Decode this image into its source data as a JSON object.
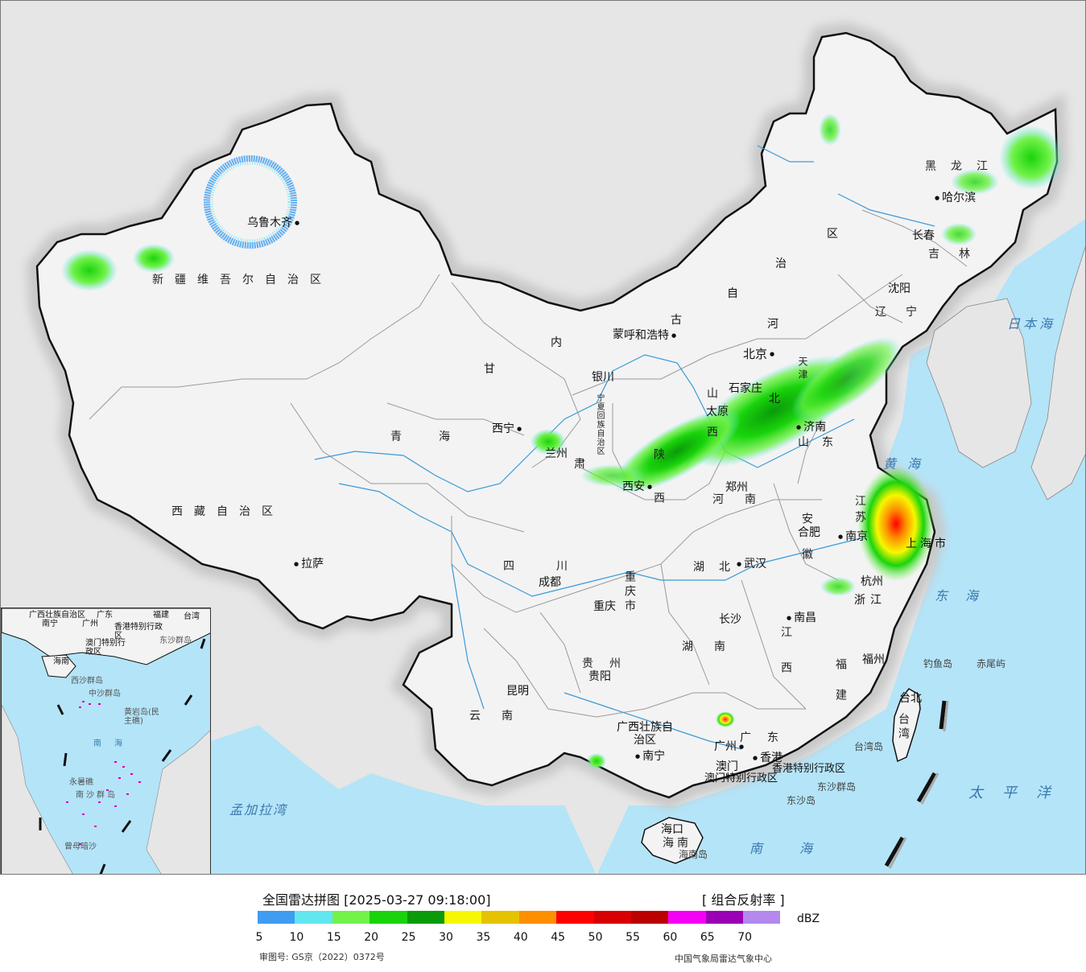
{
  "map": {
    "colors": {
      "land": "#f3f3f3",
      "outside": "#e6e6e6",
      "sea": "#b4e4f8",
      "border": "#111111",
      "province_border": "#9a9a9a",
      "river": "#3a9ad9"
    },
    "province_labels": {
      "xinjiang": "新疆维吾尔自治区",
      "xizang": "西藏自治区",
      "qinghai": "青海",
      "gansu": "甘",
      "gansu2": "肃",
      "neimenggu_a": "内",
      "neimenggu_b": "蒙",
      "neimenggu_c": "古",
      "neimenggu_d": "自",
      "neimenggu_e": "治",
      "neimenggu_f": "区",
      "heilongjiang": "黑龙江",
      "jilin": "吉林",
      "liaoning": "辽宁",
      "hebei_a": "河",
      "hebei_b": "北",
      "tianjin": "天津",
      "shanxi": "山西",
      "shaanxi": "陕西",
      "ningxia": "宁夏回族自治区",
      "shandong": "山东",
      "henan": "河南",
      "jiangsu": "江苏",
      "anhui": "安徽",
      "shanghai": "上海市",
      "zhejiang": "浙江",
      "hubei": "湖北",
      "hunan": "湖南",
      "jiangxi": "江西",
      "fujian": "福建",
      "guangdong": "广东",
      "guangxi": "广西壮族自治区",
      "guizhou": "贵州",
      "yunnan": "云南",
      "sichuan": "四川",
      "chongqing": "重庆市",
      "hainan": "海南",
      "taiwan": "台湾",
      "xianggang": "香港特别行政区",
      "aomen": "澳门特别行政区"
    },
    "cities": {
      "urumqi": "乌鲁木齐",
      "lasa": "拉萨",
      "xining": "西宁",
      "lanzhou": "兰州",
      "yinchuan": "银川",
      "huhehaote": "呼和浩特",
      "beijing": "北京",
      "shijiazhuang": "石家庄",
      "taiyuan": "太原",
      "jinan": "济南",
      "xian": "西安",
      "zhengzhou": "郑州",
      "hefei": "合肥",
      "nanjing": "南京",
      "hangzhou": "杭州",
      "wuhan": "武汉",
      "changsha": "长沙",
      "nanchang": "南昌",
      "fuzhou": "福州",
      "chengdu": "成都",
      "chongqing": "重庆",
      "guiyang": "贵阳",
      "kunming": "昆明",
      "nanning": "南宁",
      "guangzhou": "广州",
      "aomen": "澳门",
      "xianggang": "香港",
      "haikou": "海口",
      "taibei": "台北",
      "shenyang": "沈阳",
      "changchun": "长春",
      "haerbin": "哈尔滨"
    },
    "seas": {
      "riben": "日本海",
      "huang": "黄海",
      "dong": "东海",
      "nan": "南海",
      "taiping": "太平洋",
      "mengjiala": "孟加拉湾"
    },
    "islands": {
      "diaoyu": "钓鱼岛",
      "chiwei": "赤尾屿",
      "taiwan_isle": "台湾岛",
      "hainan_isle": "海南岛",
      "dongsha_qundao": "东沙群岛",
      "dongsha_dao": "东沙岛"
    }
  },
  "inset": {
    "labels": {
      "guangxi": "广西壮族自治区",
      "guangdong": "广东",
      "fujian": "福建",
      "taiwan": "台湾",
      "nanning": "南宁",
      "guangzhou": "广州",
      "hongkong": "香港特别行政区",
      "macao": "澳门特别行政区",
      "dongsha": "东沙群岛",
      "hainan": "海南",
      "xisha": "西沙群岛",
      "zhongsha": "中沙群岛",
      "huangyan": "黄岩岛(民主礁)",
      "nanhai": "南海",
      "yongshu": "永暑礁",
      "nansha": "南沙群岛",
      "zengmu": "曾母暗沙"
    }
  },
  "legend": {
    "title": "全国雷达拼图 [2025-03-27 09:18:00]",
    "product": "[ 组合反射率 ]",
    "unit": "dBZ",
    "colors": [
      "#3f9cf0",
      "#62e6ef",
      "#73f24a",
      "#19d40b",
      "#0a9b0a",
      "#f7f700",
      "#e5c300",
      "#fd8f00",
      "#fe0000",
      "#d80000",
      "#bb0000",
      "#f500f5",
      "#9a00b5",
      "#b389ee"
    ],
    "ticks": [
      "5",
      "10",
      "15",
      "20",
      "25",
      "30",
      "35",
      "40",
      "45",
      "50",
      "55",
      "60",
      "65",
      "70"
    ],
    "approval": "审图号: GS京（2022）0372号",
    "source": "中国气象局雷达气象中心"
  }
}
